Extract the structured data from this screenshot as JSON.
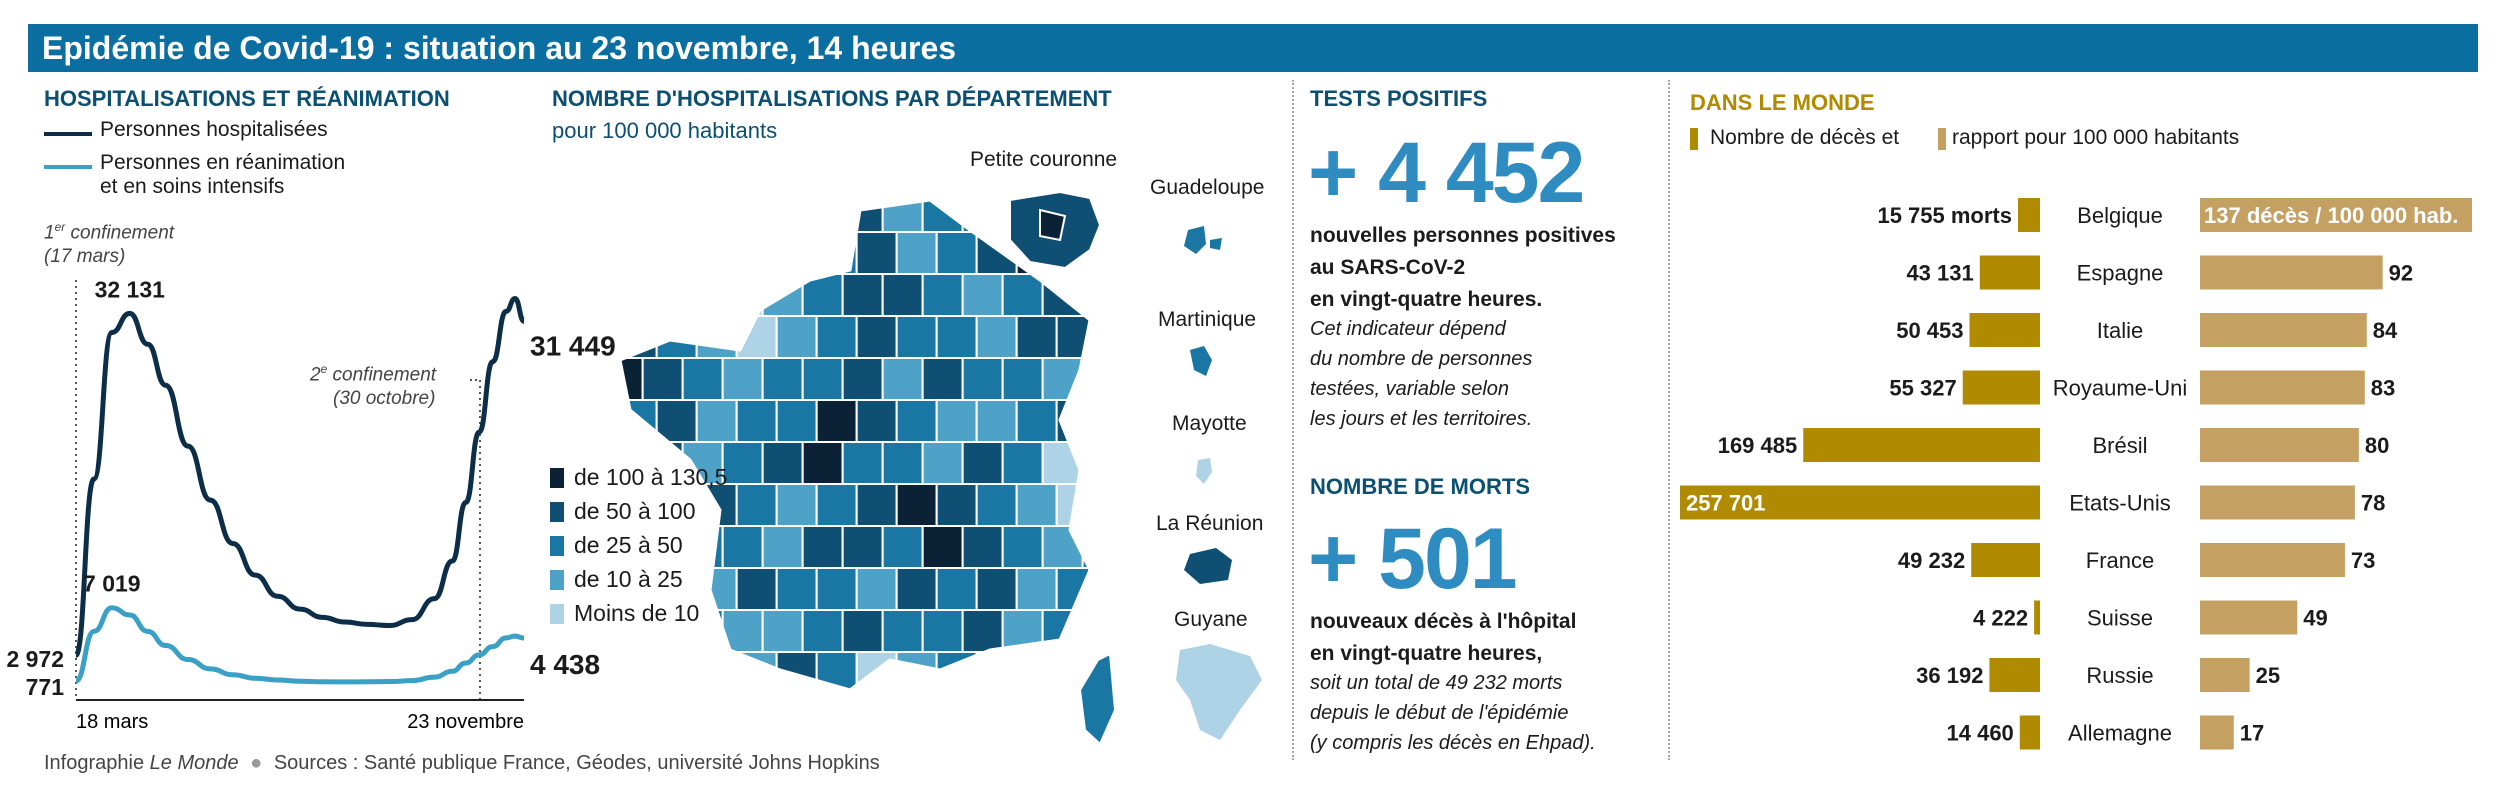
{
  "title": "Epidémie de Covid-19 : situation au 23 novembre, 14 heures",
  "colors": {
    "titlebar": "#0a6fa0",
    "hospitalized": "#0c2e48",
    "icu": "#3aa0c6",
    "gold": "#b08a00",
    "gold_light": "#c4a062",
    "blue_text": "#0b4f72",
    "big_number": "#2e8cc0"
  },
  "hospitalisation": {
    "title": "HOSPITALISATIONS ET RÉANIMATION",
    "legend_hospitalized": "Personnes hospitalisées",
    "legend_icu_1": "Personnes en réanimation",
    "legend_icu_2": "et en soins intensifs",
    "confinement1_1": "confinement",
    "confinement1_ord": "1",
    "confinement1_sup": "er",
    "confinement1_2": "(17 mars)",
    "confinement2_ord": "2",
    "confinement2_sup": "e",
    "confinement2_1": "confinement",
    "confinement2_2": "(30 octobre)"
  },
  "map": {
    "title": "NOMBRE D'HOSPITALISATIONS PAR DÉPARTEMENT",
    "subtitle": "pour 100 000 habitants",
    "petite_couronne": "Petite couronne",
    "guadeloupe": "Guadeloupe",
    "martinique": "Martinique",
    "mayotte": "Mayotte",
    "reunion": "La Réunion",
    "guyane": "Guyane",
    "legend": [
      {
        "label": "de 100 à 130,5",
        "color": "#0b2236"
      },
      {
        "label": "de 50 à 100",
        "color": "#0e4f73"
      },
      {
        "label": "de 25 à 50",
        "color": "#1a77a3"
      },
      {
        "label": "de 10 à 25",
        "color": "#4ea2c8"
      },
      {
        "label": "Moins de 10",
        "color": "#aed3e6"
      }
    ]
  },
  "tests": {
    "title": "TESTS  POSITIFS",
    "value": "+ 4 452",
    "desc_1": "nouvelles personnes positives",
    "desc_2": "au SARS-CoV-2",
    "desc_3": "en vingt-quatre heures.",
    "note_1": "Cet indicateur dépend",
    "note_2": "du nombre de personnes",
    "note_3": "testées, variable selon",
    "note_4": "les jours et les territoires."
  },
  "deaths": {
    "title": "NOMBRE DE MORTS",
    "value": "+ 501",
    "desc_1": "nouveaux décès à l'hôpital",
    "desc_2": "en vingt-quatre heures,",
    "note_1": "soit un total de 49 232 morts",
    "note_2": "depuis le début de l'épidémie",
    "note_3": "(y compris les décès en Ehpad)."
  },
  "world": {
    "title": "DANS LE MONDE",
    "legend_deaths": "Nombre de décès et",
    "legend_ratio": "rapport pour 100 000 habitants"
  },
  "footer": {
    "credit_prefix": "Infographie ",
    "credit_name": "Le Monde",
    "sources": "Sources : Santé publique France, Géodes, université Johns Hopkins"
  },
  "chart_data": [
    {
      "type": "line",
      "x_labels": [
        "18 mars",
        "23 novembre"
      ],
      "series": [
        {
          "name": "Personnes hospitalisées",
          "x": [
            0,
            0.04,
            0.08,
            0.12,
            0.16,
            0.2,
            0.25,
            0.3,
            0.35,
            0.4,
            0.45,
            0.5,
            0.55,
            0.6,
            0.65,
            0.7,
            0.75,
            0.8,
            0.84,
            0.87,
            0.9,
            0.93,
            0.96,
            0.98,
            1.0
          ],
          "values": [
            2972,
            18000,
            30500,
            32131,
            29500,
            26000,
            20800,
            16200,
            12500,
            9800,
            8000,
            6900,
            6200,
            5800,
            5600,
            5500,
            6000,
            7800,
            11000,
            16000,
            22000,
            28000,
            32300,
            33400,
            31449
          ]
        },
        {
          "name": "Personnes en réanimation et en soins intensifs",
          "x": [
            0,
            0.04,
            0.08,
            0.12,
            0.16,
            0.2,
            0.25,
            0.3,
            0.35,
            0.4,
            0.45,
            0.5,
            0.55,
            0.6,
            0.65,
            0.7,
            0.75,
            0.8,
            0.84,
            0.87,
            0.9,
            0.93,
            0.96,
            0.98,
            1.0
          ],
          "values": [
            771,
            5000,
            7019,
            6400,
            5000,
            3800,
            2600,
            1800,
            1300,
            1000,
            850,
            750,
            700,
            690,
            700,
            720,
            800,
            1100,
            1600,
            2300,
            3000,
            3700,
            4450,
            4600,
            4438
          ]
        }
      ],
      "ylim": [
        0,
        36000
      ],
      "annotations": [
        {
          "label": "32 131",
          "series": 0,
          "index": 3
        },
        {
          "label": "31 449",
          "series": 0,
          "index": 24
        },
        {
          "label": "2 972",
          "series": 0,
          "index": 0
        },
        {
          "label": "7 019",
          "series": 1,
          "index": 2
        },
        {
          "label": "771",
          "series": 1,
          "index": 0
        },
        {
          "label": "4 438",
          "series": 1,
          "index": 24
        }
      ]
    },
    {
      "type": "bar",
      "categories": [
        "Belgique",
        "Espagne",
        "Italie",
        "Royaume-Uni",
        "Brésil",
        "Etats-Unis",
        "France",
        "Suisse",
        "Russie",
        "Allemagne"
      ],
      "series": [
        {
          "name": "Nombre de décès",
          "values": [
            15755,
            43131,
            50453,
            55327,
            169485,
            257701,
            49232,
            4222,
            36192,
            14460
          ],
          "labels": [
            "15 755 morts",
            "43 131",
            "50 453",
            "55 327",
            "169 485",
            "257 701",
            "49 232",
            "4 222",
            "36 192",
            "14 460"
          ]
        },
        {
          "name": "rapport pour 100 000 habitants",
          "values": [
            137,
            92,
            84,
            83,
            80,
            78,
            73,
            49,
            25,
            17
          ],
          "labels": [
            "137 décès / 100 000 hab.",
            "92",
            "84",
            "83",
            "80",
            "78",
            "73",
            "49",
            "25",
            "17"
          ]
        }
      ]
    }
  ]
}
